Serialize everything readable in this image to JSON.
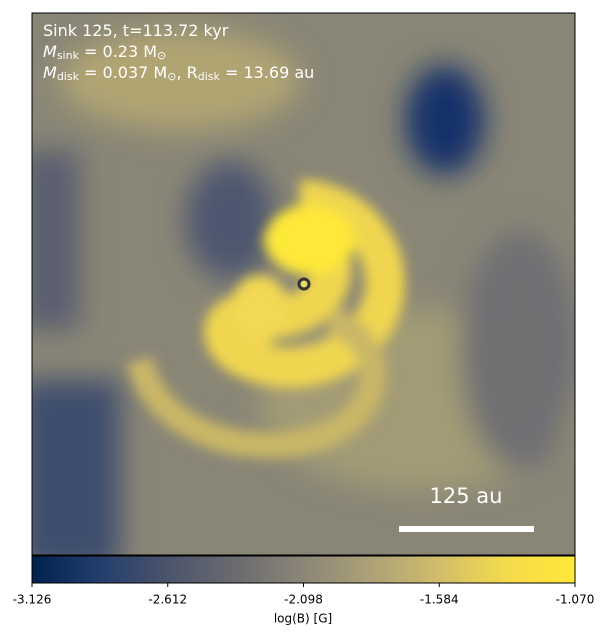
{
  "chart_data": {
    "type": "image",
    "annotation_lines": [
      [
        {
          "text": "Sink 125, t=113.72 kyr"
        }
      ],
      [
        {
          "text": "M"
        },
        {
          "sub": "sink"
        },
        {
          "text": " = 0.23 M"
        },
        {
          "sub": "⊙"
        }
      ],
      [
        {
          "text": "M"
        },
        {
          "sub": "disk"
        },
        {
          "text": " = 0.037 M"
        },
        {
          "sub": "⊙"
        },
        {
          "text": ", R"
        },
        {
          "sub": "disk"
        },
        {
          "text": " = 13.69 au"
        }
      ]
    ],
    "scale_bar_label": "125 au",
    "colorbar": {
      "label": "log(B) [G]",
      "lim": [
        -3.126,
        -1.07
      ],
      "ticks": [
        -3.126,
        -2.612,
        -2.098,
        -1.584,
        {
          "value": -1.07,
          "label": "-1.070"
        }
      ],
      "colormap": [
        "#00224e",
        "#233e6c",
        "#4b546c",
        "#6b6b70",
        "#8b8677",
        "#ada177",
        "#d1bd6a",
        "#f5db4c",
        "#fee838"
      ]
    }
  }
}
